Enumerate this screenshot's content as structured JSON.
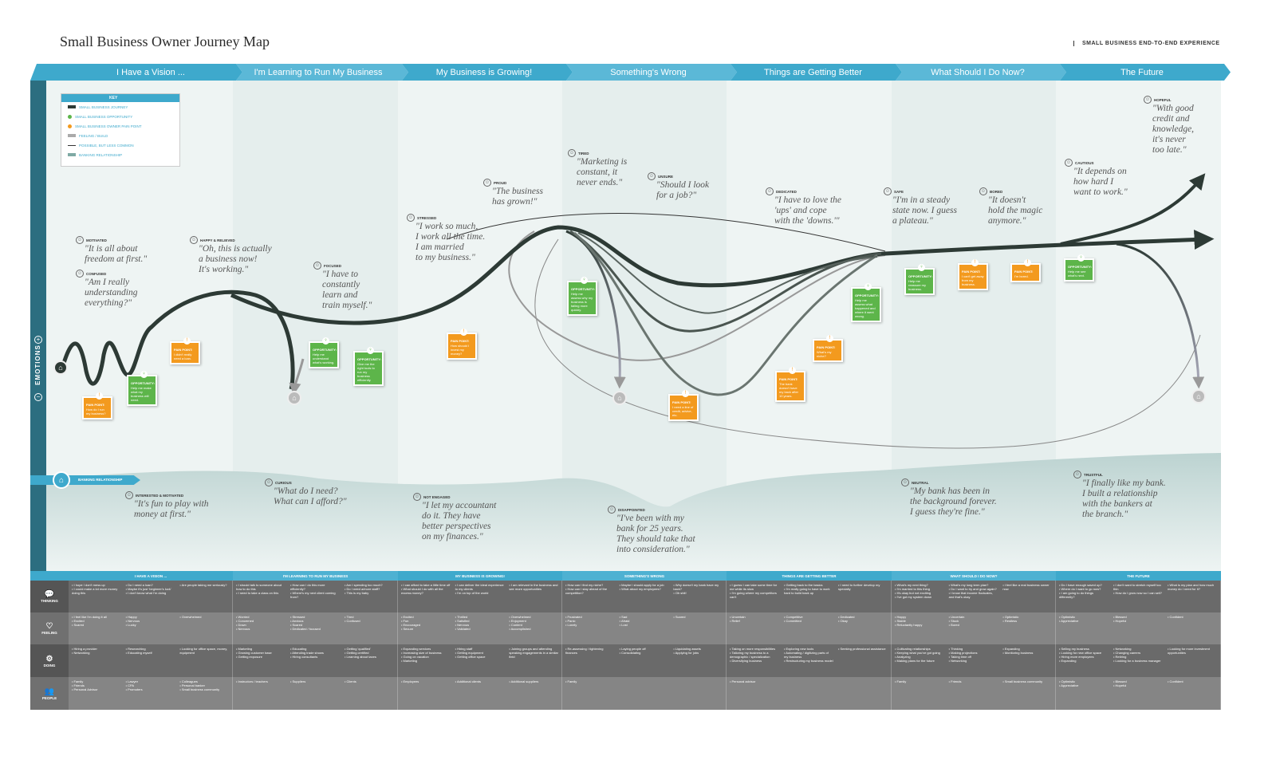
{
  "title": "Small Business Owner Journey Map",
  "subtitle": "SMALL BUSINESS END-TO-END EXPERIENCE",
  "colors": {
    "phase_blue": "#3ea9cc",
    "curve": "#2d3a35",
    "opportunity": "#5db54a",
    "pain": "#f39a1e",
    "side": "#2c6e80",
    "bank_wave": "#c9dcdb",
    "table_dark": "#6a6a6a",
    "table_light": "#8a8a8a"
  },
  "phases": [
    "I Have a Vision ...",
    "I'm Learning to Run My Business",
    "My Business is Growing!",
    "Something's Wrong",
    "Things are Getting Better",
    "What Should I Do Now?",
    "The Future"
  ],
  "table_phases": [
    "I HAVE A VISION ...",
    "I'M LEARNING TO RUN MY BUSINESS",
    "MY BUSINESS IS GROWING!",
    "SOMETHING'S WRONG",
    "THINGS ARE GETTING BETTER",
    "WHAT SHOULD I DO NOW?",
    "THE FUTURE"
  ],
  "key": {
    "title": "KEY",
    "items": [
      "SMALL BUSINESS JOURNEY",
      "SMALL BUSINESS OPPORTUNITY",
      "SMALL BUSINESS OWNER PAIN POINT",
      "FEELING / BUILD",
      "POSSIBLE, BUT LESS COMMON",
      "BANKING RELATIONSHIP"
    ]
  },
  "side_label": "EMOTIONS",
  "bank_label": "BANKING RELATIONSHIP",
  "emotions": [
    {
      "label": "MOTIVATED",
      "quote": "\"It is all about\nfreedom at first.\""
    },
    {
      "label": "CONFUSED",
      "quote": "\"Am I really\nunderstanding\neverything?\""
    },
    {
      "label": "HAPPY & RELIEVED",
      "quote": "\"Oh, this is actually\na business now!\nIt's working.\""
    },
    {
      "label": "FOCUSED",
      "quote": "\"I have to\nconstantly\nlearn and\ntrain myself.\""
    },
    {
      "label": "STRESSED",
      "quote": "\"I work so much,\nI work all the time.\nI am married\nto my business.\""
    },
    {
      "label": "PROUD",
      "quote": "\"The business\nhas grown!\""
    },
    {
      "label": "TIRED",
      "quote": "\"Marketing is\nconstant, it\nnever ends.\""
    },
    {
      "label": "UNSURE",
      "quote": "\"Should I look\nfor a job?\""
    },
    {
      "label": "DEDICATED",
      "quote": "\"I have to love the\n'ups' and cope\nwith the 'downs.'\""
    },
    {
      "label": "SAFE",
      "quote": "\"I'm in a steady\nstate now. I guess\na plateau.\""
    },
    {
      "label": "BORED",
      "quote": "\"It doesn't\nhold the magic\nanymore.\""
    },
    {
      "label": "CAUTIOUS",
      "quote": "\"It depends on\nhow hard I\nwant to work.\""
    },
    {
      "label": "HOPEFUL",
      "quote": "\"With good\ncredit and\nknowledge,\nit's never\ntoo late.\""
    }
  ],
  "bank_quotes": [
    {
      "label": "INTERESTED & MOTIVATED",
      "quote": "\"It's fun to play with\nmoney at first.\""
    },
    {
      "label": "CURIOUS",
      "quote": "\"What do I need?\nWhat can I afford?\""
    },
    {
      "label": "NOT ENGAGED",
      "quote": "\"I let my accountant\ndo it. They have\nbetter perspectives\non my finances.\""
    },
    {
      "label": "DISAPPOINTED",
      "quote": "\"I've been with my\nbank for 25 years.\nThey should take that\ninto consideration.\""
    },
    {
      "label": "NEUTRAL",
      "quote": "\"My bank has been in\nthe background forever.\nI guess they're fine.\""
    },
    {
      "label": "TRUSTFUL",
      "quote": "\"I finally like my bank.\nI built a relationship\nwith the bankers at\nthe branch.\""
    }
  ],
  "cards": [
    {
      "type": "pain",
      "title": "PAIN POINT:",
      "text": "How do I run my business?"
    },
    {
      "type": "opp",
      "title": "OPPORTUNITY:",
      "text": "Help me make what my business will need."
    },
    {
      "type": "pain",
      "title": "PAIN POINT:",
      "text": "I didn't really need a loan."
    },
    {
      "type": "opp",
      "title": "OPPORTUNITY:",
      "text": "Help me understand what's working."
    },
    {
      "type": "opp",
      "title": "OPPORTUNITY:",
      "text": "Give me the right tools to run my business efficiently."
    },
    {
      "type": "pain",
      "title": "PAIN POINT:",
      "text": "How should I invest my money?"
    },
    {
      "type": "opp",
      "title": "OPPORTUNITY:",
      "text": "Help me assess why my business is failing more quickly."
    },
    {
      "type": "pain",
      "title": "PAIN POINT:",
      "text": "I need a line of credit, advice, etc."
    },
    {
      "type": "pain",
      "title": "PAIN POINT:",
      "text": "The bank doesn't have my back after 10 years."
    },
    {
      "type": "pain",
      "title": "PAIN POINT:",
      "text": "What's my niche?"
    },
    {
      "type": "opp",
      "title": "OPPORTUNITY:",
      "text": "Help me assess what happened and where it went wrong."
    },
    {
      "type": "opp",
      "title": "OPPORTUNITY:",
      "text": "Help me reassure my business."
    },
    {
      "type": "pain",
      "title": "PAIN POINT:",
      "text": "I can't get away from my business."
    },
    {
      "type": "pain",
      "title": "PAIN POINT:",
      "text": "I'm bored."
    },
    {
      "type": "opp",
      "title": "OPPORTUNITY:",
      "text": "Help me see what's next."
    }
  ],
  "rows": [
    {
      "label": "THINKING",
      "icon": "speech-bubble-icon",
      "cells": [
        [
          "I hope I don't mess up",
          "I could make a lot more money doing this",
          "Do I need a loan?",
          "Maybe it's just 'beginner's luck'",
          "I don't know what I'm doing",
          "Are people taking me seriously?"
        ],
        [
          "I should talk to someone about how to do this",
          "I need to take a class on this",
          "How can I do this more efficiently?",
          "Where's my next client coming from?",
          "Am I spending too much?",
          "Do I need a/more staff?",
          "This is my baby"
        ],
        [
          "I can afford to take a little time off",
          "What should I do with all the excess money?",
          "I can deliver the ideal experience to my clients",
          "I'm on top of the world",
          "I am relevant in the business and see more opportunities"
        ],
        [
          "How can I find my niche?",
          "How can I stay ahead of the competition?",
          "Maybe I should apply for a job",
          "What about my employees?",
          "Why doesn't my bank have my back?",
          "Oh shit!"
        ],
        [
          "I guess I can take some time for me while its slow",
          "I'm going where my competitors can't",
          "Getting back to the basics",
          "I'm really going to have to work hard to build back up",
          "I need to further develop my specialty"
        ],
        [
          "What's my next thing?",
          "I'm married to this thing",
          "It's okay but not exciting",
          "I've got my system down",
          "What's my long term plan?",
          "Do I want to try and grow again?",
          "I know that income fluctuates, and that's okay",
          "I feel like a real business owner now"
        ],
        [
          "Do I have enough saved up?",
          "Where do I want to go now?",
          "I am going to do things differently?",
          "I don't want to stretch myself too thin",
          "How do I grow now so I can sell?",
          "What is my plan and how much money do I need for it?"
        ]
      ]
    },
    {
      "label": "FEELING",
      "icon": "heart-icon",
      "cells": [
        [
          "I feel like I'm doing it all",
          "Excited",
          "Scared",
          "Happy",
          "Nervous",
          "Lucky",
          "Overwhelmed"
        ],
        [
          "Worried",
          "Concerned",
          "Down",
          "Nervous",
          "Stressed",
          "Anxious",
          "Scared",
          "Dedicated / focused",
          "Tired",
          "Confused"
        ],
        [
          "Excited",
          "Fun",
          "Encouraged",
          "Secure",
          "Thrilled",
          "Satisfied",
          "Nervous",
          "Validated",
          "Overwhelmed",
          "Enjoyment",
          "Content",
          "Accomplished"
        ],
        [
          "Frustrated",
          "Panic",
          "Lonely",
          "Sad",
          "Afraid",
          "Lost",
          "Scared"
        ],
        [
          "Uncertain",
          "Relief",
          "Competitive",
          "Committed",
          "Dedicated",
          "Okay"
        ],
        [
          "Happy",
          "Stable",
          "Reluctantly happy",
          "Uncertain",
          "Stuck",
          "Bored",
          "Optimistic",
          "Restless"
        ],
        [
          "Optimistic",
          "Appreciative",
          "Blessed",
          "Hopeful",
          "Confident"
        ]
      ]
    },
    {
      "label": "DOING",
      "icon": "gears-icon",
      "cells": [
        [
          "Hiring a provider",
          "Networking",
          "Researching",
          "Educating myself",
          "Looking for office space, money, equipment"
        ],
        [
          "Marketing",
          "Growing customer base",
          "Getting exposure",
          "Educating",
          "Attending trade shows",
          "Hiring consultants",
          "Getting 'qualified'",
          "Getting certified",
          "Learning about taxes"
        ],
        [
          "Expanding services",
          "Increasing size of business",
          "Going on vacation",
          "Marketing",
          "Hiring staff",
          "Getting equipment",
          "Getting office space",
          "Joining groups and attending speaking engagements in a similar field"
        ],
        [
          "Re-assessing / tightening finances",
          "Laying people off",
          "Consolidating",
          "Liquidating assets",
          "Applying for jobs"
        ],
        [
          "Taking on more responsibilities",
          "Tailoring my business to a demographic / specialization",
          "Diversifying business",
          "Exploring new tools",
          "Automating / digitizing parts of my business",
          "Restructuring my business model",
          "Seeking professional assistance"
        ],
        [
          "Cultivating relationships",
          "Keeping what you've got going",
          "Analyzing",
          "Making plans for the future",
          "Thinking",
          "Making projections",
          "Taking time off",
          "Networking",
          "Expanding",
          "Monitoring business"
        ],
        [
          "Selling my business",
          "Looking for new office space",
          "Hiring more employees",
          "Expanding",
          "Networking",
          "Changing careers",
          "Retiring",
          "Looking for a business manager",
          "Looking for more investment opportunities"
        ]
      ]
    },
    {
      "label": "PEOPLE",
      "icon": "people-icon",
      "cells": [
        [
          "Family",
          "Friends",
          "Personal Advisor",
          "Lawyer",
          "CPA",
          "Promoters",
          "Colleagues",
          "Personal banker",
          "Small business community"
        ],
        [
          "Instructors / teachers",
          "Suppliers",
          "Clients"
        ],
        [
          "Employees",
          "Additional clients",
          "Additional suppliers"
        ],
        [
          "Family"
        ],
        [
          "Personal advisor"
        ],
        [
          "Family",
          "Friends",
          "Small business community"
        ],
        [
          "Optimistic",
          "Appreciative",
          "Blessed",
          "Hopeful",
          "Confident"
        ]
      ]
    }
  ]
}
